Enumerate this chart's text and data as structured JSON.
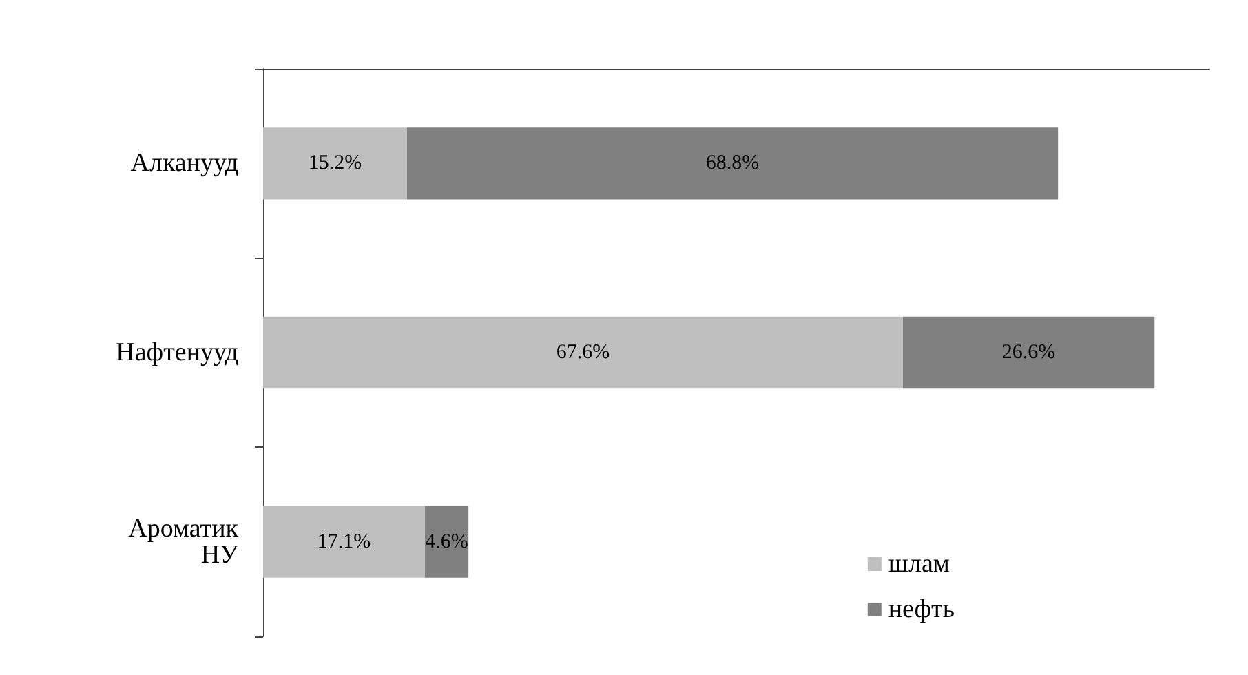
{
  "chart_data": {
    "type": "bar",
    "orientation": "horizontal",
    "stacked": true,
    "categories": [
      "Алканууд",
      "Нафтенууд",
      "Ароматик\nНУ"
    ],
    "series": [
      {
        "name": "шлам",
        "color": "#bfbfbf",
        "values": [
          15.2,
          67.6,
          17.1
        ],
        "value_labels": [
          "15.2%",
          "67.6%",
          "17.1%"
        ]
      },
      {
        "name": "нефть",
        "color": "#808080",
        "values": [
          68.8,
          26.6,
          4.6
        ],
        "value_labels": [
          "68.8%",
          "26.6%",
          "4.6%"
        ]
      }
    ],
    "legend": "bottom right",
    "grid": false
  }
}
